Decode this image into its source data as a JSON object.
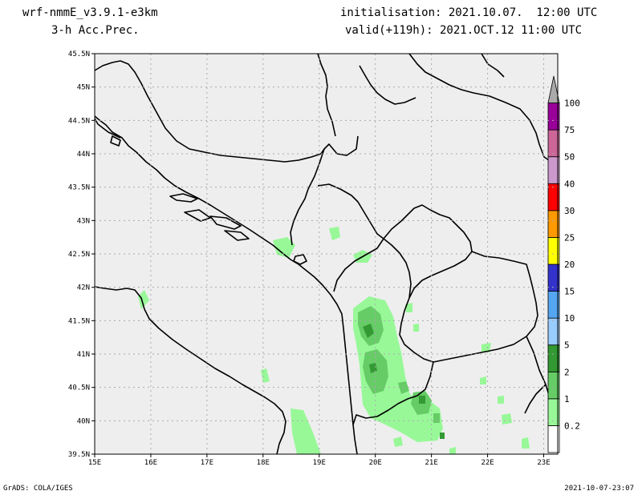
{
  "header": {
    "model": "wrf-nmmE_v3.9.1-e3km",
    "field": "3-h Acc.Prec.",
    "initialisation": "initialisation: 2021.10.07.  12:00 UTC",
    "valid": "valid(+119h): 2021.OCT.12 11:00 UTC"
  },
  "footer": {
    "credit": "GrADS: COLA/IGES",
    "timestamp": "2021-10-07-23:07"
  },
  "map": {
    "lat_labels": [
      "45.5N",
      "45N",
      "44.5N",
      "44N",
      "43.5N",
      "43N",
      "42.5N",
      "42N",
      "41.5N",
      "41N",
      "40.5N",
      "40N",
      "39.5N"
    ],
    "lat_values": [
      45.5,
      45,
      44.5,
      44,
      43.5,
      43,
      42.5,
      42,
      41.5,
      41,
      40.5,
      40,
      39.5
    ],
    "lon_labels": [
      "15E",
      "16E",
      "17E",
      "18E",
      "19E",
      "20E",
      "21E",
      "22E",
      "23E"
    ],
    "lon_values": [
      15,
      16,
      17,
      18,
      19,
      20,
      21,
      22,
      23
    ],
    "lon_range": [
      15,
      23.25
    ],
    "lat_range": [
      39.5,
      45.5
    ],
    "land_color": "#eeeeee",
    "grid": true
  },
  "colorbar": {
    "labels": [
      "0.2",
      "1",
      "2",
      "5",
      "10",
      "15",
      "20",
      "25",
      "30",
      "40",
      "50",
      "75",
      "100"
    ],
    "colors": [
      "#ffffff",
      "#98f898",
      "#66cc66",
      "#339933",
      "#99ccff",
      "#55a6f2",
      "#3333cc",
      "#ffff00",
      "#ff9900",
      "#ff0000",
      "#cc99cc",
      "#cc6699",
      "#990099",
      "#aaaaaa"
    ]
  }
}
